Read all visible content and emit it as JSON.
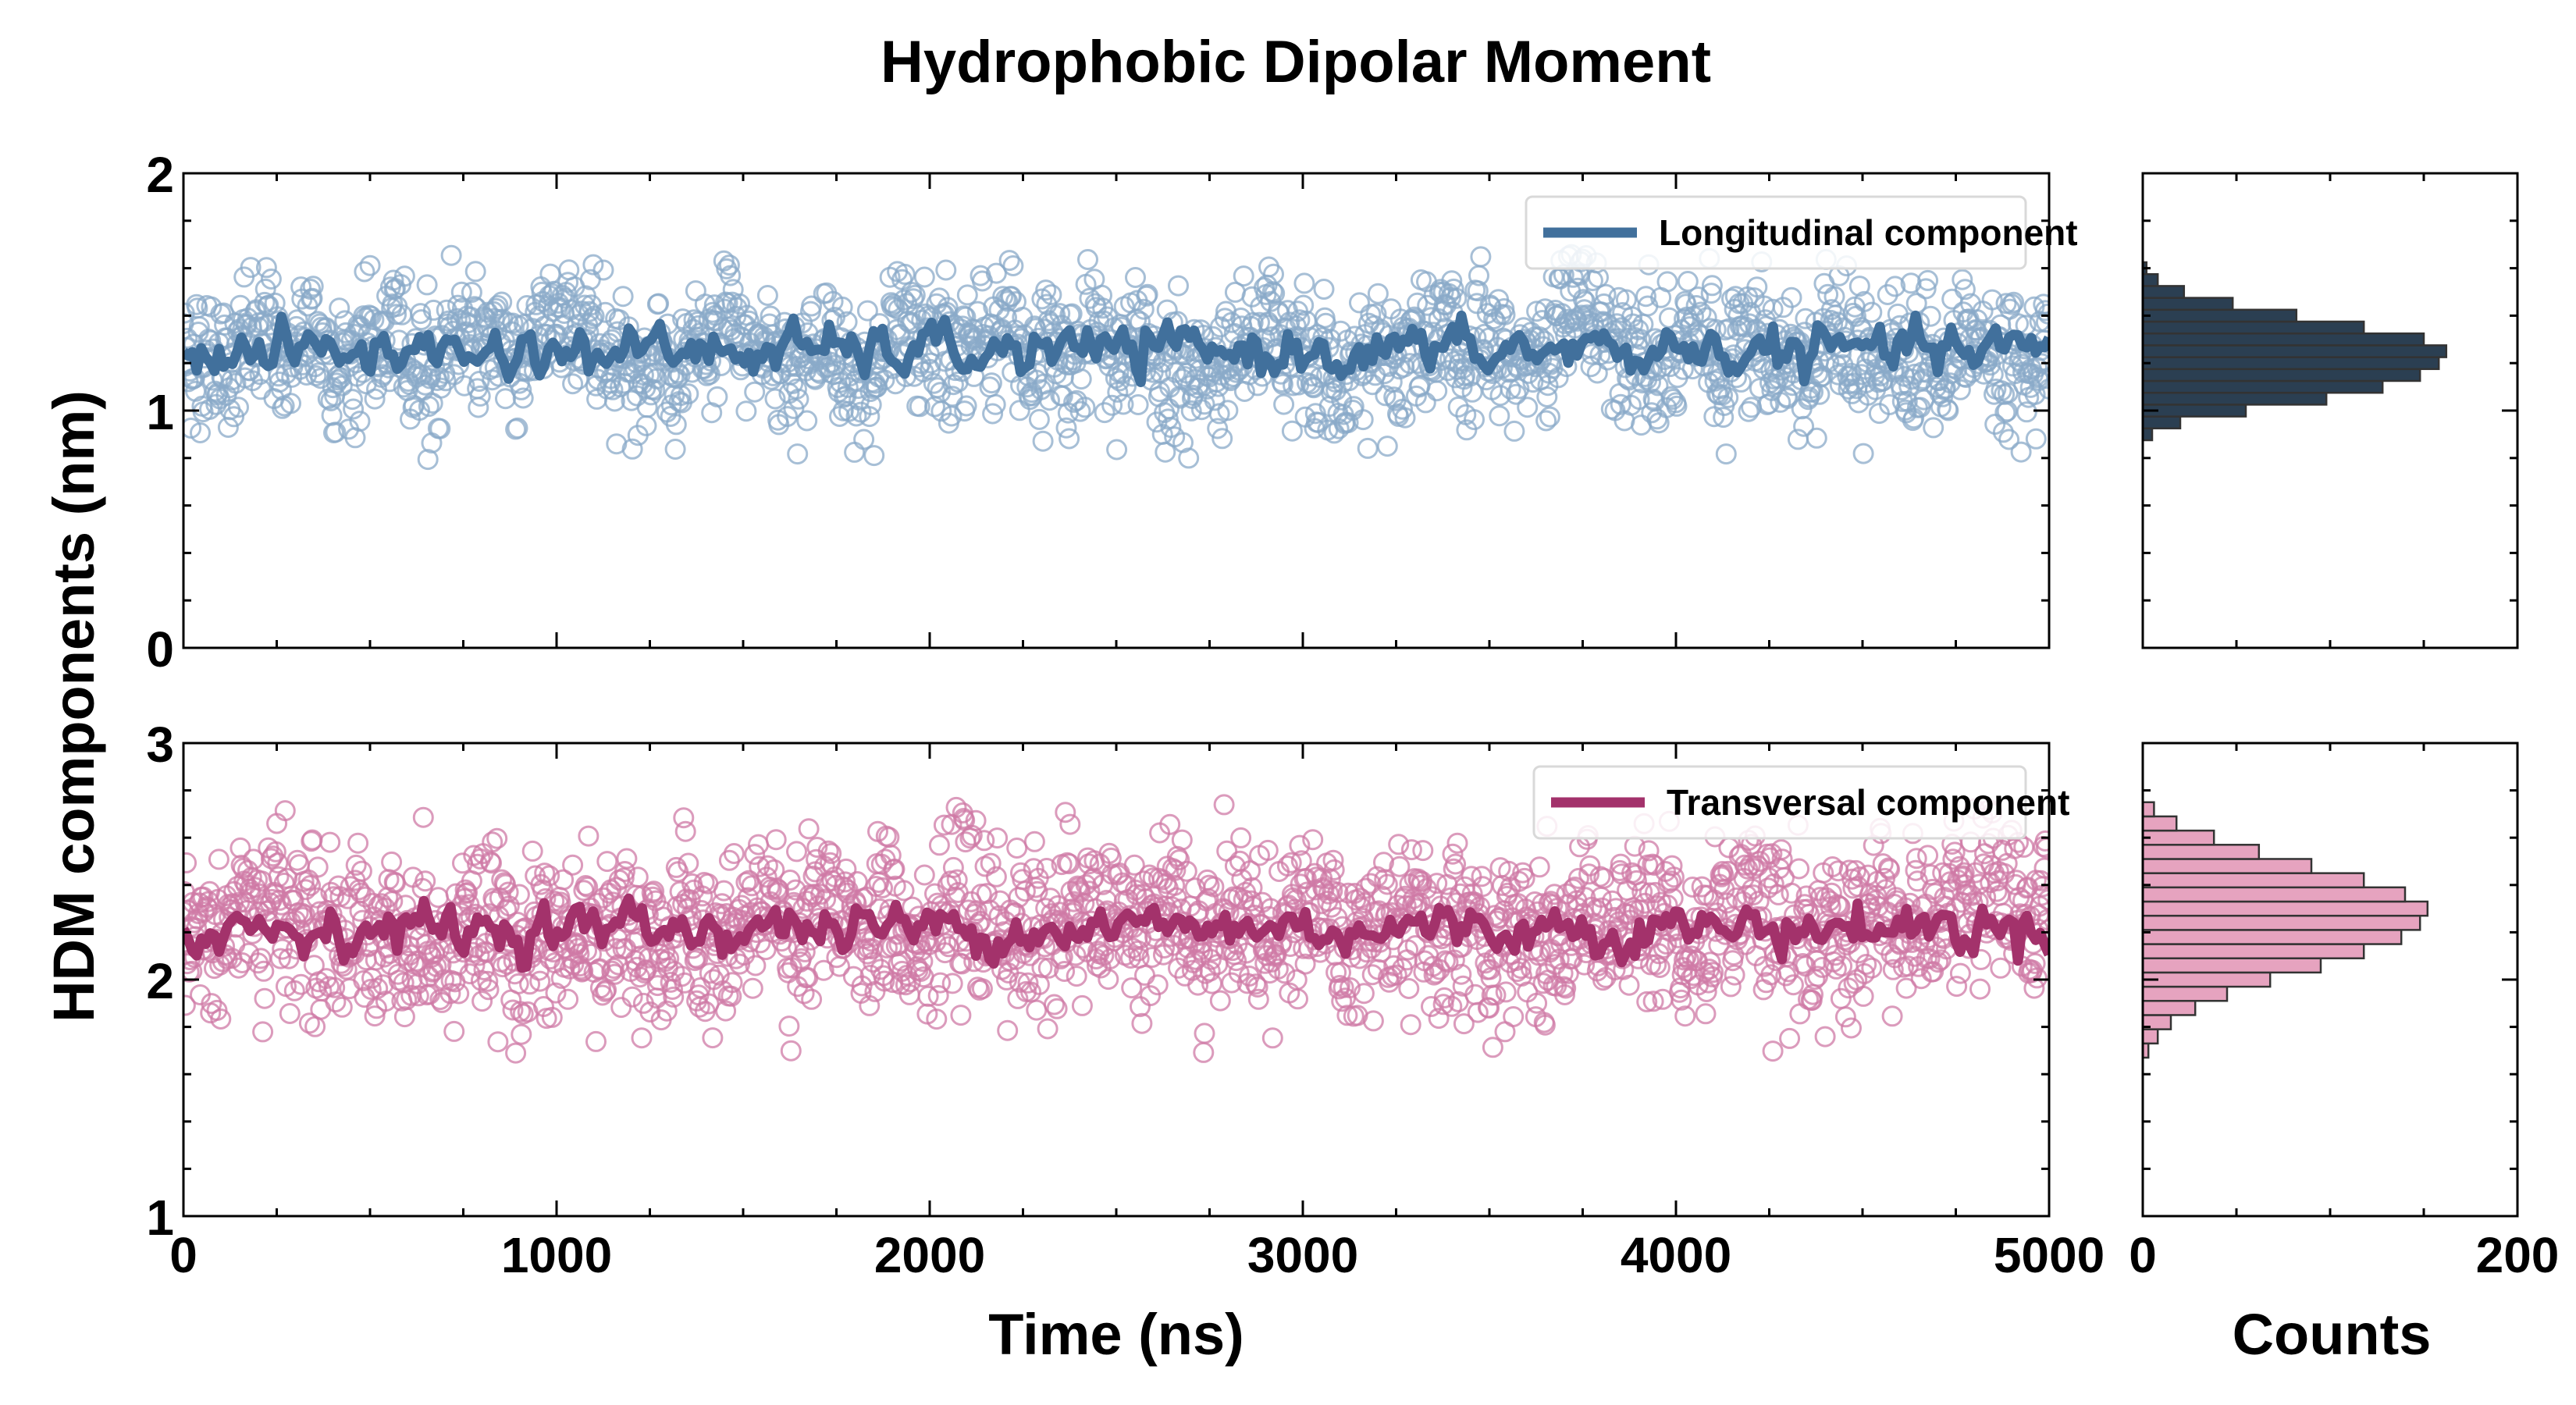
{
  "title": "Hydrophobic Dipolar Moment",
  "ylabel": "HDM components (nm)",
  "xlabel": "Time (ns)",
  "hist_xlabel": "Counts",
  "colors": {
    "longitudinal": "#41709c",
    "longitudinal_marker": "#8aa9c8",
    "longitudinal_hist": "#2b3f52",
    "transversal": "#a3326b",
    "transversal_marker": "#cf7aa6",
    "transversal_hist": "#e6a3bf",
    "axes": "#000000"
  },
  "chart_data": [
    {
      "type": "scatter",
      "panel": "top-time-series",
      "series": [
        {
          "name": "Longitudinal component",
          "marker": "open-circle",
          "n_points": 2000,
          "mean": 1.25,
          "std": 0.14,
          "min": 0.79,
          "max": 1.66
        },
        {
          "name": "Longitudinal component",
          "style": "running-average-line",
          "mean": 1.25,
          "range": [
            1.12,
            1.4
          ]
        }
      ],
      "legend": {
        "entries": [
          "Longitudinal component"
        ],
        "placement": "top-right"
      },
      "xlim": [
        0,
        5000
      ],
      "ylim": [
        0,
        2
      ],
      "xticks": [
        "0",
        "1000",
        "2000",
        "3000",
        "4000",
        "5000"
      ],
      "yticks": [
        "0",
        "1",
        "2"
      ],
      "grid": false
    },
    {
      "type": "scatter",
      "panel": "bottom-time-series",
      "series": [
        {
          "name": "Transversal component",
          "marker": "open-circle",
          "n_points": 2000,
          "mean": 2.22,
          "std": 0.18,
          "min": 1.67,
          "max": 2.83
        },
        {
          "name": "Transversal component",
          "style": "running-average-line",
          "mean": 2.22,
          "range": [
            2.05,
            2.42
          ]
        }
      ],
      "legend": {
        "entries": [
          "Transversal component"
        ],
        "placement": "top-right"
      },
      "xlim": [
        0,
        5000
      ],
      "ylim": [
        1,
        3
      ],
      "xticks": [
        "0",
        "1000",
        "2000",
        "3000",
        "4000",
        "5000"
      ],
      "yticks": [
        "1",
        "2",
        "3"
      ],
      "grid": false
    },
    {
      "type": "bar",
      "panel": "top-histogram",
      "orientation": "horizontal",
      "bins": [
        0.9,
        0.95,
        1.0,
        1.05,
        1.1,
        1.15,
        1.2,
        1.25,
        1.3,
        1.35,
        1.4,
        1.45,
        1.5,
        1.55,
        1.6
      ],
      "counts": [
        5,
        20,
        55,
        98,
        128,
        148,
        158,
        162,
        150,
        118,
        82,
        48,
        22,
        8,
        2
      ],
      "xlim": [
        0,
        200
      ],
      "ylim": [
        0,
        2
      ],
      "xticks": [
        "0",
        "200"
      ]
    },
    {
      "type": "bar",
      "panel": "bottom-histogram",
      "orientation": "horizontal",
      "bins": [
        1.7,
        1.76,
        1.82,
        1.88,
        1.94,
        2.0,
        2.06,
        2.12,
        2.18,
        2.24,
        2.3,
        2.36,
        2.42,
        2.48,
        2.54,
        2.6,
        2.66,
        2.72
      ],
      "counts": [
        3,
        8,
        15,
        28,
        45,
        68,
        95,
        118,
        138,
        148,
        152,
        140,
        118,
        90,
        62,
        38,
        18,
        6
      ],
      "xlim": [
        0,
        200
      ],
      "ylim": [
        1,
        3
      ],
      "xticks": [
        "0",
        "200"
      ]
    }
  ]
}
